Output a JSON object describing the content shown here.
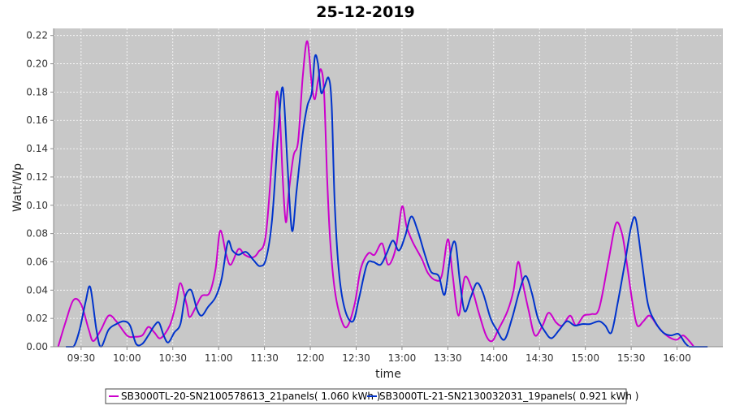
{
  "chart_data": {
    "type": "line",
    "title": "25-12-2019",
    "xlabel": "time",
    "ylabel": "Watt/Wp",
    "xlim": [
      "09:12",
      "16:30"
    ],
    "ylim": [
      0,
      0.225
    ],
    "yticks": [
      0.0,
      0.02,
      0.04,
      0.06,
      0.08,
      0.1,
      0.12,
      0.14,
      0.16,
      0.18,
      0.2,
      0.22
    ],
    "ytick_labels": [
      "0.00",
      "0.02",
      "0.04",
      "0.06",
      "0.08",
      "0.10",
      "0.12",
      "0.14",
      "0.16",
      "0.18",
      "0.20",
      "0.22"
    ],
    "xticks": [
      "09:30",
      "10:00",
      "10:30",
      "11:00",
      "11:30",
      "12:00",
      "12:30",
      "13:00",
      "13:30",
      "14:00",
      "14:30",
      "15:00",
      "15:30",
      "16:00"
    ],
    "grid": true,
    "legend_position": "bottom",
    "series": [
      {
        "name": "SB3000TL-20-SN2100578613_21panels( 1.060 kWh )",
        "color": "#cc00cc",
        "points": [
          [
            "09:15",
            0.0
          ],
          [
            "09:20",
            0.018
          ],
          [
            "09:25",
            0.033
          ],
          [
            "09:30",
            0.03
          ],
          [
            "09:35",
            0.012
          ],
          [
            "09:38",
            0.004
          ],
          [
            "09:43",
            0.012
          ],
          [
            "09:48",
            0.022
          ],
          [
            "09:53",
            0.018
          ],
          [
            "10:00",
            0.008
          ],
          [
            "10:05",
            0.007
          ],
          [
            "10:10",
            0.008
          ],
          [
            "10:14",
            0.014
          ],
          [
            "10:18",
            0.01
          ],
          [
            "10:22",
            0.006
          ],
          [
            "10:28",
            0.015
          ],
          [
            "10:32",
            0.03
          ],
          [
            "10:35",
            0.045
          ],
          [
            "10:39",
            0.03
          ],
          [
            "10:41",
            0.021
          ],
          [
            "10:45",
            0.028
          ],
          [
            "10:49",
            0.036
          ],
          [
            "10:54",
            0.038
          ],
          [
            "10:58",
            0.055
          ],
          [
            "11:01",
            0.082
          ],
          [
            "11:05",
            0.065
          ],
          [
            "11:08",
            0.058
          ],
          [
            "11:13",
            0.069
          ],
          [
            "11:17",
            0.065
          ],
          [
            "11:22",
            0.063
          ],
          [
            "11:26",
            0.067
          ],
          [
            "11:31",
            0.08
          ],
          [
            "11:36",
            0.15
          ],
          [
            "11:38",
            0.18
          ],
          [
            "11:40",
            0.165
          ],
          [
            "11:42",
            0.118
          ],
          [
            "11:44",
            0.088
          ],
          [
            "11:46",
            0.11
          ],
          [
            "11:49",
            0.135
          ],
          [
            "11:52",
            0.145
          ],
          [
            "11:55",
            0.19
          ],
          [
            "11:58",
            0.216
          ],
          [
            "12:01",
            0.185
          ],
          [
            "12:03",
            0.175
          ],
          [
            "12:05",
            0.188
          ],
          [
            "12:07",
            0.196
          ],
          [
            "12:09",
            0.18
          ],
          [
            "12:11",
            0.12
          ],
          [
            "12:13",
            0.075
          ],
          [
            "12:16",
            0.04
          ],
          [
            "12:20",
            0.02
          ],
          [
            "12:24",
            0.014
          ],
          [
            "12:29",
            0.03
          ],
          [
            "12:33",
            0.055
          ],
          [
            "12:38",
            0.066
          ],
          [
            "12:42",
            0.065
          ],
          [
            "12:47",
            0.073
          ],
          [
            "12:51",
            0.058
          ],
          [
            "12:56",
            0.07
          ],
          [
            "13:00",
            0.099
          ],
          [
            "13:03",
            0.085
          ],
          [
            "13:07",
            0.074
          ],
          [
            "13:13",
            0.062
          ],
          [
            "13:17",
            0.052
          ],
          [
            "13:22",
            0.047
          ],
          [
            "13:26",
            0.05
          ],
          [
            "13:30",
            0.076
          ],
          [
            "13:33",
            0.052
          ],
          [
            "13:37",
            0.022
          ],
          [
            "13:41",
            0.049
          ],
          [
            "13:46",
            0.04
          ],
          [
            "13:50",
            0.025
          ],
          [
            "13:55",
            0.008
          ],
          [
            "13:59",
            0.004
          ],
          [
            "14:03",
            0.012
          ],
          [
            "14:09",
            0.025
          ],
          [
            "14:13",
            0.04
          ],
          [
            "14:16",
            0.06
          ],
          [
            "14:19",
            0.045
          ],
          [
            "14:23",
            0.025
          ],
          [
            "14:27",
            0.008
          ],
          [
            "14:32",
            0.015
          ],
          [
            "14:36",
            0.024
          ],
          [
            "14:41",
            0.017
          ],
          [
            "14:45",
            0.015
          ],
          [
            "14:50",
            0.022
          ],
          [
            "14:54",
            0.015
          ],
          [
            "14:59",
            0.022
          ],
          [
            "15:04",
            0.023
          ],
          [
            "15:09",
            0.027
          ],
          [
            "15:15",
            0.06
          ],
          [
            "15:20",
            0.087
          ],
          [
            "15:24",
            0.08
          ],
          [
            "15:27",
            0.06
          ],
          [
            "15:31",
            0.03
          ],
          [
            "15:34",
            0.015
          ],
          [
            "15:38",
            0.018
          ],
          [
            "15:42",
            0.022
          ],
          [
            "15:47",
            0.015
          ],
          [
            "15:51",
            0.01
          ],
          [
            "15:56",
            0.006
          ],
          [
            "16:00",
            0.005
          ],
          [
            "16:04",
            0.008
          ],
          [
            "16:08",
            0.004
          ],
          [
            "16:11",
            0.0
          ]
        ]
      },
      {
        "name": "SB3000TL-21-SN2130032031_19panels( 0.921 kWh )",
        "color": "#0033cc",
        "points": [
          [
            "09:20",
            0.0
          ],
          [
            "09:25",
            0.0
          ],
          [
            "09:29",
            0.012
          ],
          [
            "09:33",
            0.032
          ],
          [
            "09:36",
            0.042
          ],
          [
            "09:40",
            0.012
          ],
          [
            "09:43",
            0.0
          ],
          [
            "09:48",
            0.012
          ],
          [
            "09:53",
            0.016
          ],
          [
            "09:58",
            0.018
          ],
          [
            "10:02",
            0.015
          ],
          [
            "10:06",
            0.002
          ],
          [
            "10:10",
            0.002
          ],
          [
            "10:14",
            0.008
          ],
          [
            "10:18",
            0.015
          ],
          [
            "10:21",
            0.017
          ],
          [
            "10:24",
            0.008
          ],
          [
            "10:27",
            0.003
          ],
          [
            "10:31",
            0.01
          ],
          [
            "10:35",
            0.016
          ],
          [
            "10:38",
            0.035
          ],
          [
            "10:42",
            0.04
          ],
          [
            "10:46",
            0.026
          ],
          [
            "10:49",
            0.022
          ],
          [
            "10:53",
            0.028
          ],
          [
            "10:58",
            0.035
          ],
          [
            "11:02",
            0.048
          ],
          [
            "11:06",
            0.074
          ],
          [
            "11:09",
            0.068
          ],
          [
            "11:13",
            0.065
          ],
          [
            "11:18",
            0.067
          ],
          [
            "11:23",
            0.061
          ],
          [
            "11:27",
            0.057
          ],
          [
            "11:31",
            0.062
          ],
          [
            "11:35",
            0.09
          ],
          [
            "11:39",
            0.152
          ],
          [
            "11:42",
            0.183
          ],
          [
            "11:45",
            0.13
          ],
          [
            "11:48",
            0.082
          ],
          [
            "11:51",
            0.11
          ],
          [
            "11:55",
            0.15
          ],
          [
            "11:58",
            0.17
          ],
          [
            "12:01",
            0.18
          ],
          [
            "12:03",
            0.205
          ],
          [
            "12:05",
            0.2
          ],
          [
            "12:07",
            0.18
          ],
          [
            "12:09",
            0.183
          ],
          [
            "12:12",
            0.19
          ],
          [
            "12:14",
            0.17
          ],
          [
            "12:16",
            0.1
          ],
          [
            "12:19",
            0.05
          ],
          [
            "12:23",
            0.025
          ],
          [
            "12:28",
            0.018
          ],
          [
            "12:32",
            0.035
          ],
          [
            "12:37",
            0.058
          ],
          [
            "12:41",
            0.06
          ],
          [
            "12:46",
            0.058
          ],
          [
            "12:50",
            0.066
          ],
          [
            "12:54",
            0.075
          ],
          [
            "12:58",
            0.068
          ],
          [
            "13:02",
            0.078
          ],
          [
            "13:06",
            0.092
          ],
          [
            "13:10",
            0.083
          ],
          [
            "13:15",
            0.065
          ],
          [
            "13:19",
            0.053
          ],
          [
            "13:24",
            0.05
          ],
          [
            "13:28",
            0.037
          ],
          [
            "13:32",
            0.067
          ],
          [
            "13:35",
            0.073
          ],
          [
            "13:38",
            0.045
          ],
          [
            "13:41",
            0.025
          ],
          [
            "13:45",
            0.035
          ],
          [
            "13:49",
            0.045
          ],
          [
            "13:53",
            0.038
          ],
          [
            "13:58",
            0.02
          ],
          [
            "14:02",
            0.012
          ],
          [
            "14:07",
            0.005
          ],
          [
            "14:12",
            0.02
          ],
          [
            "14:17",
            0.04
          ],
          [
            "14:21",
            0.05
          ],
          [
            "14:25",
            0.038
          ],
          [
            "14:29",
            0.02
          ],
          [
            "14:34",
            0.01
          ],
          [
            "14:38",
            0.006
          ],
          [
            "14:43",
            0.012
          ],
          [
            "14:48",
            0.018
          ],
          [
            "14:53",
            0.015
          ],
          [
            "14:58",
            0.016
          ],
          [
            "15:03",
            0.016
          ],
          [
            "15:09",
            0.018
          ],
          [
            "15:13",
            0.015
          ],
          [
            "15:17",
            0.01
          ],
          [
            "15:21",
            0.03
          ],
          [
            "15:26",
            0.06
          ],
          [
            "15:30",
            0.085
          ],
          [
            "15:33",
            0.09
          ],
          [
            "15:37",
            0.06
          ],
          [
            "15:41",
            0.03
          ],
          [
            "15:46",
            0.017
          ],
          [
            "15:51",
            0.01
          ],
          [
            "15:56",
            0.008
          ],
          [
            "16:01",
            0.009
          ],
          [
            "16:05",
            0.003
          ],
          [
            "16:08",
            0.0
          ],
          [
            "16:12",
            0.0
          ],
          [
            "16:16",
            0.0
          ],
          [
            "16:20",
            0.0
          ]
        ]
      }
    ]
  }
}
